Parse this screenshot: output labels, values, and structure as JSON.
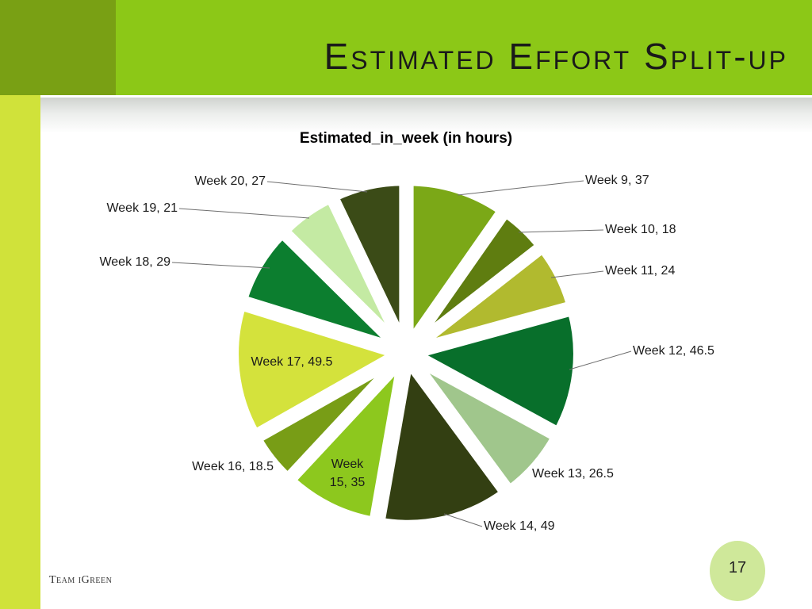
{
  "slide": {
    "title": "Estimated Effort Split-up",
    "footer": "Team iGreen",
    "page_number": "17"
  },
  "colors": {
    "top_bar": "#8cc817",
    "top_square": "#79a014",
    "left_bar": "#d0e23a",
    "page_circle": "#cfe89a",
    "label_text": "#1a1a1a",
    "leader_line": "#6e6e6e"
  },
  "chart_data": {
    "type": "pie",
    "variant": "exploded",
    "title": "Estimated_in_week (in hours)",
    "data_labels": "category, value",
    "legend": "none",
    "slices": [
      {
        "label": "Week 9",
        "value": 37,
        "color": "#7ba817",
        "label_text": "Week 9, 37"
      },
      {
        "label": "Week 10",
        "value": 18,
        "color": "#5f7d10",
        "label_text": "Week 10, 18"
      },
      {
        "label": "Week 11",
        "value": 24,
        "color": "#b1ba2f",
        "label_text": "Week 11, 24"
      },
      {
        "label": "Week 12",
        "value": 46.5,
        "color": "#086f2b",
        "label_text": "Week 12, 46.5"
      },
      {
        "label": "Week 13",
        "value": 26.5,
        "color": "#a0c68c",
        "label_text": "Week 13, 26.5"
      },
      {
        "label": "Week 14",
        "value": 49,
        "color": "#333f12",
        "label_text": "Week 14, 49"
      },
      {
        "label": "Week 15",
        "value": 35,
        "color": "#8dc81e",
        "label_text": "Week 15, 35"
      },
      {
        "label": "Week 16",
        "value": 18.5,
        "color": "#789d16",
        "label_text": "Week 16, 18.5"
      },
      {
        "label": "Week 17",
        "value": 49.5,
        "color": "#d4e23c",
        "label_text": "Week 17, 49.5"
      },
      {
        "label": "Week 18",
        "value": 29,
        "color": "#0c7e2f",
        "label_text": "Week 18, 29"
      },
      {
        "label": "Week 19",
        "value": 21,
        "color": "#c4eaa3",
        "label_text": "Week 19, 21"
      },
      {
        "label": "Week 20",
        "value": 27,
        "color": "#3b4b17",
        "label_text": "Week 20, 27"
      }
    ]
  }
}
